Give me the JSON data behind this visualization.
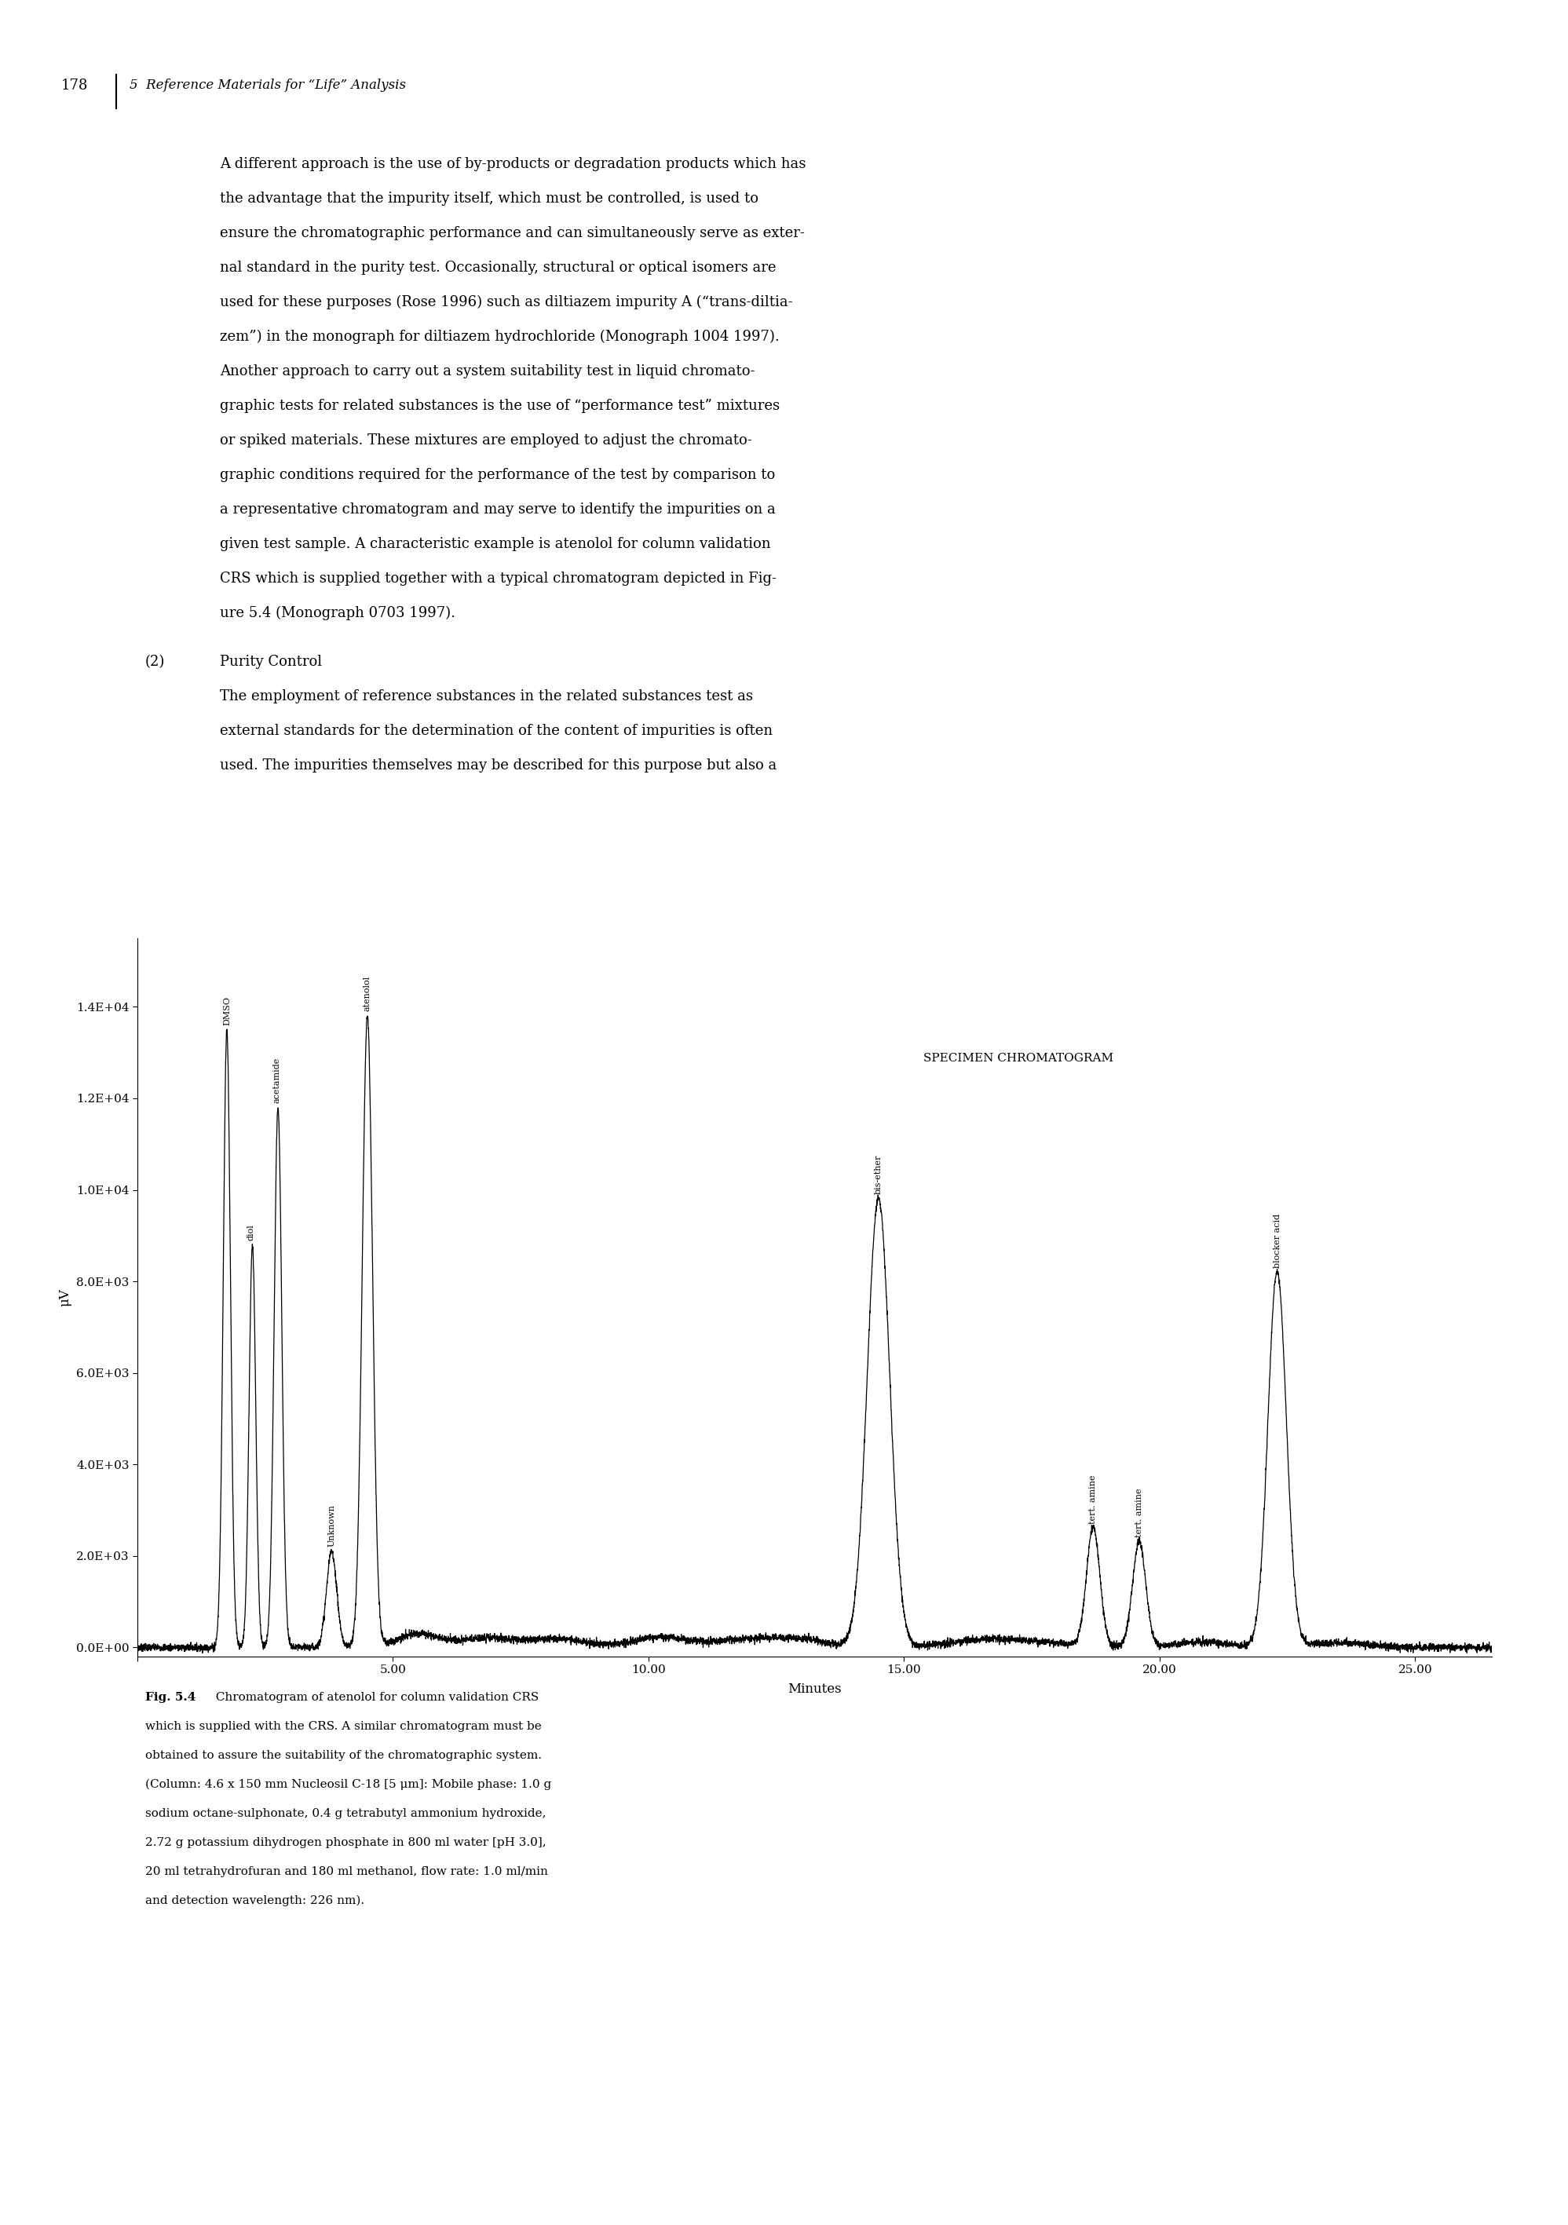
{
  "page_number": "178",
  "chapter_header": "5  Reference Materials for “Life” Analysis",
  "para1_lines": [
    "A different approach is the use of by-products or degradation products which has",
    "the advantage that the impurity itself, which must be controlled, is used to",
    "ensure the chromatographic performance and can simultaneously serve as exter-",
    "nal standard in the purity test. Occasionally, structural or optical isomers are",
    "used for these purposes (Rose 1996) such as diltiazem impurity A (“trans-diltia-",
    "zem”) in the monograph for diltiazem hydrochloride (Monograph 1004 1997).",
    "Another approach to carry out a system suitability test in liquid chromato-",
    "graphic tests for related substances is the use of “performance test” mixtures",
    "or spiked materials. These mixtures are employed to adjust the chromato-",
    "graphic conditions required for the performance of the test by comparison to",
    "a representative chromatogram and may serve to identify the impurities on a",
    "given test sample. A characteristic example is atenolol for column validation",
    "CRS which is supplied together with a typical chromatogram depicted in Fig-",
    "ure 5.4 (Monograph 0703 1997)."
  ],
  "section_num": "(2)",
  "section_title": "Purity Control",
  "para2_lines": [
    "The employment of reference substances in the related substances test as",
    "external standards for the determination of the content of impurities is often",
    "used. The impurities themselves may be described for this purpose but also a"
  ],
  "caption_bold": "Fig. 5.4",
  "caption_lines": [
    "  Chromatogram of atenolol for column validation CRS",
    "which is supplied with the CRS. A similar chromatogram must be",
    "obtained to assure the suitability of the chromatographic system.",
    "(Column: 4.6 x 150 mm Nucleosil C-18 [5 μm]: Mobile phase: 1.0 g",
    "sodium octane-sulphonate, 0.4 g tetrabutyl ammonium hydroxide,",
    "2.72 g potassium dihydrogen phosphate in 800 ml water [pH 3.0],",
    "20 ml tetrahydrofuran and 180 ml methanol, flow rate: 1.0 ml/min",
    "and detection wavelength: 226 nm)."
  ],
  "specimen_label": "SPECIMEN CHROMATOGRAM",
  "ylabel": "μV",
  "xlabel": "Minutes",
  "ytick_labels": [
    "0.0E+00",
    "2.0E+03",
    "4.0E+03",
    "6.0E+03",
    "8.0E+03",
    "1.0E+04",
    "1.2E+04",
    "1.4E+04"
  ],
  "ytick_vals": [
    0,
    2000,
    4000,
    6000,
    8000,
    10000,
    12000,
    14000
  ],
  "xtick_vals": [
    0,
    5.0,
    10.0,
    15.0,
    20.0,
    25.0
  ],
  "xtick_labels": [
    "",
    "5.00",
    "10.00",
    "15.00",
    "20.00",
    "25.00"
  ],
  "xlim": [
    0,
    26.5
  ],
  "ylim": [
    -200,
    15500
  ],
  "peak_params": [
    [
      1.75,
      13500,
      0.07,
      "DMSO"
    ],
    [
      2.25,
      8800,
      0.065,
      "diol"
    ],
    [
      2.75,
      11800,
      0.075,
      "acetamide"
    ],
    [
      4.5,
      13800,
      0.1,
      "atenolol"
    ],
    [
      3.8,
      2100,
      0.1,
      "Unknown"
    ],
    [
      14.5,
      9800,
      0.22,
      "bis-ether"
    ],
    [
      18.7,
      2600,
      0.13,
      "tert. amine"
    ],
    [
      19.6,
      2300,
      0.13,
      "tert. amine"
    ],
    [
      22.3,
      8200,
      0.18,
      "blocker acid"
    ]
  ],
  "baseline_noise_sigma": 40,
  "bg_color": "#ffffff",
  "line_color": "#000000",
  "font_size_header": 13,
  "font_size_body": 13,
  "font_size_caption": 11,
  "font_size_axis": 11,
  "font_size_peak_label": 8
}
